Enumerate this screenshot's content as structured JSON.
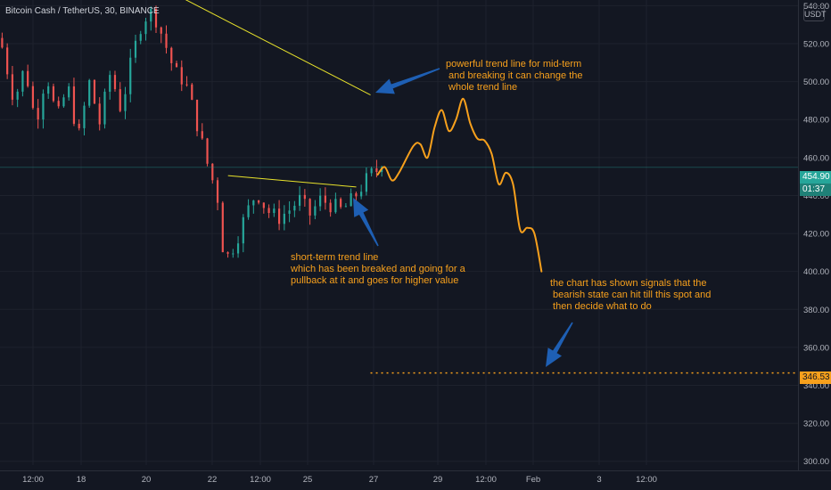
{
  "header": {
    "title": "Bitcoin Cash / TetherUS, 30, BINANCE",
    "currency_button": "USDT"
  },
  "annotations": {
    "mid_term": "powerful trend line for mid-term\n and breaking it can change the\n whole trend line",
    "short_term": "short-term trend line\nwhich has been breaked and going for a\npullback at it and goes for higher value",
    "bearish": "the chart has shown signals that the\n bearish state can hit till this spot and\n then decide what to do"
  },
  "price_tags": {
    "last_price": "454.90",
    "countdown": "01:37",
    "target": "346.53"
  },
  "colors": {
    "background": "#131722",
    "grid": "#1e222d",
    "up": "#26a69a",
    "down": "#ef5350",
    "trend_line": "#e8e22b",
    "projection": "#f7a01c",
    "arrow": "#1e5fb4",
    "text": "#b2b5be"
  },
  "chart_data": {
    "type": "candlestick",
    "y_ticks": [
      "540.00",
      "520.00",
      "500.00",
      "480.00",
      "460.00",
      "440.00",
      "420.00",
      "400.00",
      "380.00",
      "360.00",
      "340.00",
      "320.00",
      "300.00"
    ],
    "ylim": [
      298,
      543
    ],
    "x_ticks": [
      "12:00",
      "18",
      "20",
      "22",
      "12:00",
      "25",
      "27",
      "29",
      "12:00",
      "Feb",
      "3",
      "12:00"
    ],
    "xlim": [
      0,
      112
    ],
    "last_price": 454.9,
    "target_level": 346.53,
    "price_path": [
      [
        0,
        523
      ],
      [
        2,
        490
      ],
      [
        3.5,
        508
      ],
      [
        5,
        478
      ],
      [
        6.5,
        505
      ],
      [
        8,
        480
      ],
      [
        9.5,
        498
      ],
      [
        11,
        470
      ],
      [
        12.5,
        500
      ],
      [
        14,
        478
      ],
      [
        15.5,
        505
      ],
      [
        17,
        485
      ],
      [
        18.5,
        512
      ],
      [
        20,
        533
      ],
      [
        21.5,
        537
      ],
      [
        23,
        522
      ],
      [
        24.5,
        505
      ],
      [
        26,
        500
      ],
      [
        27.5,
        480
      ],
      [
        29,
        458
      ],
      [
        30.5,
        440
      ],
      [
        31.5,
        405
      ],
      [
        33,
        415
      ],
      [
        34.5,
        430
      ],
      [
        36,
        442
      ],
      [
        37.5,
        432
      ],
      [
        39,
        428
      ],
      [
        40.5,
        432
      ],
      [
        42,
        438
      ],
      [
        43.5,
        430
      ],
      [
        45,
        438
      ],
      [
        46.5,
        435
      ],
      [
        48,
        432
      ],
      [
        49.5,
        438
      ],
      [
        51,
        446
      ],
      [
        52,
        451
      ],
      [
        53.6,
        455
      ]
    ],
    "short_term_trend_line": [
      [
        32,
        450.5
      ],
      [
        50,
        444.5
      ]
    ],
    "mid_term_trend_line": [
      [
        22,
        551
      ],
      [
        52,
        493
      ]
    ],
    "projection_path": [
      [
        53,
        451
      ],
      [
        54,
        455
      ],
      [
        55,
        448
      ],
      [
        56,
        452
      ],
      [
        58,
        466
      ],
      [
        59,
        467
      ],
      [
        60,
        460
      ],
      [
        61,
        476
      ],
      [
        62,
        485
      ],
      [
        63,
        474
      ],
      [
        64,
        480
      ],
      [
        65,
        491
      ],
      [
        66,
        478
      ],
      [
        67,
        470
      ],
      [
        68,
        469
      ],
      [
        69,
        462
      ],
      [
        70,
        446
      ],
      [
        71,
        452
      ],
      [
        72,
        446
      ],
      [
        73,
        422
      ],
      [
        74,
        423
      ],
      [
        75,
        420
      ],
      [
        76,
        400
      ]
    ],
    "target_from_x": 52
  }
}
